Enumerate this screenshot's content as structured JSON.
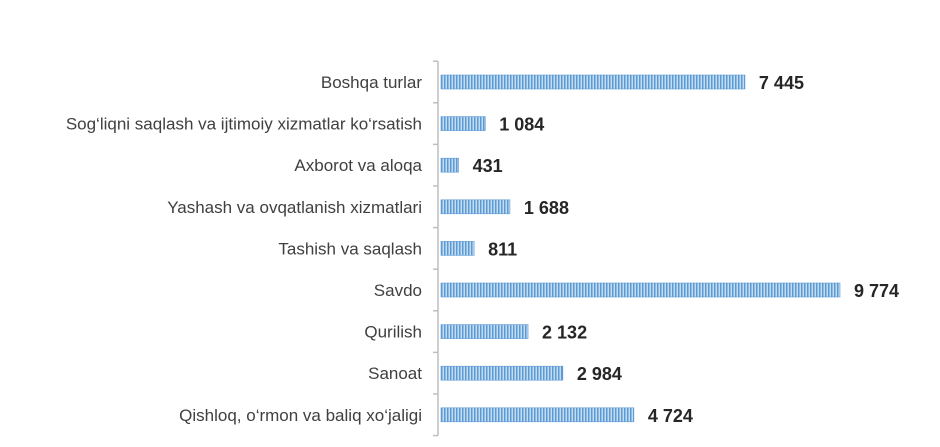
{
  "chart_data": {
    "type": "bar",
    "orientation": "horizontal",
    "title": "",
    "xlabel": "",
    "ylabel": "",
    "categories": [
      "Boshqa turlar",
      "Sog‘liqni saqlash va ijtimoiy xizmatlar ko‘rsatish",
      "Axborot va aloqa",
      "Yashash va ovqatlanish xizmatlari",
      "Tashish va saqlash",
      "Savdo",
      "Qurilish",
      "Sanoat",
      "Qishloq, o‘rmon va baliq xo‘jaligi"
    ],
    "values": [
      7445,
      1084,
      431,
      1688,
      811,
      9774,
      2132,
      2984,
      4724
    ],
    "value_labels": [
      "7 445",
      "1 084",
      "431",
      "1 688",
      "811",
      "9 774",
      "2 132",
      "2 984",
      "4 724"
    ],
    "xlim": [
      0,
      9774
    ],
    "grid": false,
    "legend": "none",
    "colors": {
      "bar_fill": "#9dc3e6",
      "bar_stripe": "#5b9bd5",
      "axis": "#bfbfbf"
    }
  }
}
